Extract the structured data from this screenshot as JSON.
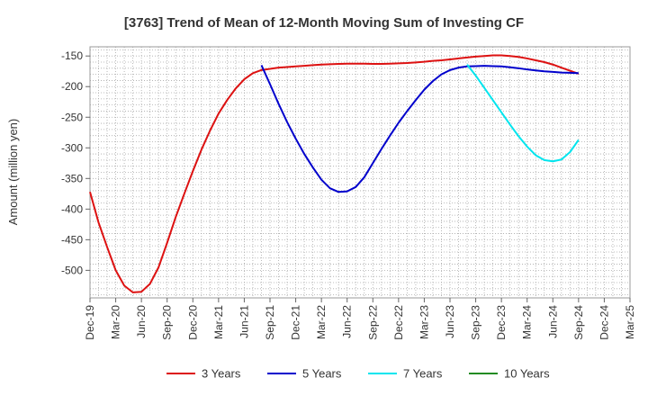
{
  "chart_data": {
    "type": "line",
    "title": "[3763]  Trend of Mean of 12-Month Moving Sum of Investing CF",
    "xlabel": "",
    "ylabel": "Amount (million yen)",
    "ylim": [
      -545,
      -135
    ],
    "y_ticks": [
      -150,
      -200,
      -250,
      -300,
      -350,
      -400,
      -450,
      -500
    ],
    "x_ticks": [
      "Dec-19",
      "Mar-20",
      "Jun-20",
      "Sep-20",
      "Dec-20",
      "Mar-21",
      "Jun-21",
      "Sep-21",
      "Dec-21",
      "Mar-22",
      "Jun-22",
      "Sep-22",
      "Dec-22",
      "Mar-23",
      "Jun-23",
      "Sep-23",
      "Dec-23",
      "Mar-24",
      "Jun-24",
      "Sep-24",
      "Dec-24",
      "Mar-25"
    ],
    "grid": true,
    "legend_position": "bottom",
    "series": [
      {
        "name": "3 Years",
        "color": "#dd1111",
        "points": [
          [
            "Dec-19",
            -372
          ],
          [
            "Jan-20",
            -422
          ],
          [
            "Feb-20",
            -462
          ],
          [
            "Mar-20",
            -500
          ],
          [
            "Apr-20",
            -525
          ],
          [
            "May-20",
            -536
          ],
          [
            "Jun-20",
            -535
          ],
          [
            "Jul-20",
            -522
          ],
          [
            "Aug-20",
            -495
          ],
          [
            "Sep-20",
            -455
          ],
          [
            "Oct-20",
            -413
          ],
          [
            "Nov-20",
            -375
          ],
          [
            "Dec-20",
            -338
          ],
          [
            "Jan-21",
            -303
          ],
          [
            "Feb-21",
            -272
          ],
          [
            "Mar-21",
            -244
          ],
          [
            "Apr-21",
            -222
          ],
          [
            "May-21",
            -203
          ],
          [
            "Jun-21",
            -188
          ],
          [
            "Jul-21",
            -178
          ],
          [
            "Aug-21",
            -173
          ],
          [
            "Sep-21",
            -171
          ],
          [
            "Oct-21",
            -169
          ],
          [
            "Nov-21",
            -168
          ],
          [
            "Dec-21",
            -167
          ],
          [
            "Jan-22",
            -166
          ],
          [
            "Feb-22",
            -165
          ],
          [
            "Mar-22",
            -164
          ],
          [
            "Apr-22",
            -163.5
          ],
          [
            "May-22",
            -163
          ],
          [
            "Jun-22",
            -162.5
          ],
          [
            "Jul-22",
            -162.5
          ],
          [
            "Aug-22",
            -162.5
          ],
          [
            "Sep-22",
            -163
          ],
          [
            "Oct-22",
            -163
          ],
          [
            "Nov-22",
            -162.5
          ],
          [
            "Dec-22",
            -162
          ],
          [
            "Jan-23",
            -161.5
          ],
          [
            "Feb-23",
            -160.5
          ],
          [
            "Mar-23",
            -159.5
          ],
          [
            "Apr-23",
            -158
          ],
          [
            "May-23",
            -157
          ],
          [
            "Jun-23",
            -155.5
          ],
          [
            "Jul-23",
            -154
          ],
          [
            "Aug-23",
            -152.5
          ],
          [
            "Sep-23",
            -151
          ],
          [
            "Oct-23",
            -150
          ],
          [
            "Nov-23",
            -149
          ],
          [
            "Dec-23",
            -149
          ],
          [
            "Jan-24",
            -150
          ],
          [
            "Feb-24",
            -151.5
          ],
          [
            "Mar-24",
            -154
          ],
          [
            "Apr-24",
            -157
          ],
          [
            "May-24",
            -160
          ],
          [
            "Jun-24",
            -164
          ],
          [
            "Jul-24",
            -169
          ],
          [
            "Aug-24",
            -174
          ],
          [
            "Sep-24",
            -179
          ]
        ]
      },
      {
        "name": "5 Years",
        "color": "#0000cc",
        "points": [
          [
            "Aug-21",
            -165
          ],
          [
            "Sep-21",
            -196
          ],
          [
            "Oct-21",
            -228
          ],
          [
            "Nov-21",
            -258
          ],
          [
            "Dec-21",
            -285
          ],
          [
            "Jan-22",
            -310
          ],
          [
            "Feb-22",
            -332
          ],
          [
            "Mar-22",
            -352
          ],
          [
            "Apr-22",
            -366
          ],
          [
            "May-22",
            -372
          ],
          [
            "Jun-22",
            -371
          ],
          [
            "Jul-22",
            -364
          ],
          [
            "Aug-22",
            -348
          ],
          [
            "Sep-22",
            -325
          ],
          [
            "Oct-22",
            -302
          ],
          [
            "Nov-22",
            -280
          ],
          [
            "Dec-22",
            -259
          ],
          [
            "Jan-23",
            -240
          ],
          [
            "Feb-23",
            -222
          ],
          [
            "Mar-23",
            -205
          ],
          [
            "Apr-23",
            -191
          ],
          [
            "May-23",
            -180
          ],
          [
            "Jun-23",
            -173
          ],
          [
            "Jul-23",
            -169
          ],
          [
            "Aug-23",
            -167
          ],
          [
            "Sep-23",
            -166.5
          ],
          [
            "Oct-23",
            -166
          ],
          [
            "Nov-23",
            -166.5
          ],
          [
            "Dec-23",
            -167
          ],
          [
            "Jan-24",
            -168.5
          ],
          [
            "Feb-24",
            -170
          ],
          [
            "Mar-24",
            -172
          ],
          [
            "Apr-24",
            -173.5
          ],
          [
            "May-24",
            -175
          ],
          [
            "Jun-24",
            -176
          ],
          [
            "Jul-24",
            -177
          ],
          [
            "Aug-24",
            -177.5
          ],
          [
            "Sep-24",
            -178
          ]
        ]
      },
      {
        "name": "7 Years",
        "color": "#00e5ee",
        "points": [
          [
            "Aug-23",
            -164
          ],
          [
            "Sep-23",
            -182
          ],
          [
            "Oct-23",
            -202
          ],
          [
            "Nov-23",
            -222
          ],
          [
            "Dec-23",
            -242
          ],
          [
            "Jan-24",
            -262
          ],
          [
            "Feb-24",
            -281
          ],
          [
            "Mar-24",
            -298
          ],
          [
            "Apr-24",
            -312
          ],
          [
            "May-24",
            -320
          ],
          [
            "Jun-24",
            -322
          ],
          [
            "Jul-24",
            -319
          ],
          [
            "Aug-24",
            -307
          ],
          [
            "Sep-24",
            -287
          ]
        ]
      },
      {
        "name": "10 Years",
        "color": "#228b22",
        "points": []
      }
    ]
  }
}
